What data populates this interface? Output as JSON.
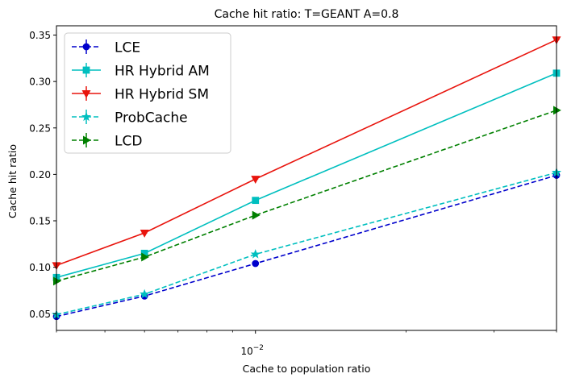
{
  "chart_data": {
    "type": "line",
    "title": "Cache hit ratio: T=GEANT A=0.8",
    "xlabel": "Cache to population ratio",
    "ylabel": "Cache hit ratio",
    "x_scale": "log",
    "xlim": [
      0.004,
      0.04
    ],
    "ylim": [
      0.032,
      0.36
    ],
    "x": [
      0.004,
      0.006,
      0.01,
      0.04
    ],
    "x_major_tick": {
      "value": 0.01,
      "label_base": "10",
      "label_exp": "−2"
    },
    "y_ticks": [
      0.05,
      0.1,
      0.15,
      0.2,
      0.25,
      0.3,
      0.35
    ],
    "y_tick_labels": [
      "0.05",
      "0.10",
      "0.15",
      "0.20",
      "0.25",
      "0.30",
      "0.35"
    ],
    "grid": false,
    "legend_position": "top-left",
    "series": [
      {
        "name": "LCE",
        "values": [
          0.047,
          0.069,
          0.104,
          0.199
        ],
        "color": "#0000cc",
        "dash": "dashed",
        "marker": "circle"
      },
      {
        "name": "HR Hybrid AM",
        "values": [
          0.089,
          0.115,
          0.172,
          0.309
        ],
        "color": "#00bfbf",
        "dash": "solid",
        "marker": "square"
      },
      {
        "name": "HR Hybrid SM",
        "values": [
          0.102,
          0.137,
          0.195,
          0.345
        ],
        "color": "#e8140d",
        "dash": "solid",
        "marker": "triangle-down"
      },
      {
        "name": "ProbCache",
        "values": [
          0.049,
          0.071,
          0.114,
          0.202
        ],
        "color": "#00bfbf",
        "dash": "dashed",
        "marker": "star"
      },
      {
        "name": "LCD",
        "values": [
          0.085,
          0.111,
          0.156,
          0.269
        ],
        "color": "#008000",
        "dash": "dashed",
        "marker": "triangle-right"
      }
    ]
  }
}
